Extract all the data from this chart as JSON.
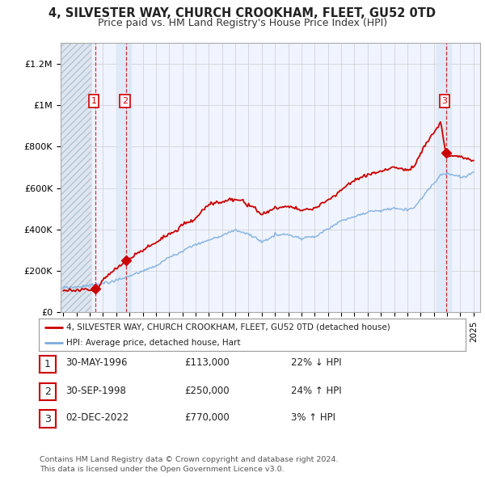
{
  "title": "4, SILVESTER WAY, CHURCH CROOKHAM, FLEET, GU52 0TD",
  "subtitle": "Price paid vs. HM Land Registry's House Price Index (HPI)",
  "ylabel_ticks": [
    "£0",
    "£200K",
    "£400K",
    "£600K",
    "£800K",
    "£1M",
    "£1.2M"
  ],
  "ytick_values": [
    0,
    200000,
    400000,
    600000,
    800000,
    1000000,
    1200000
  ],
  "ylim": [
    0,
    1300000
  ],
  "xlim_start": 1993.8,
  "xlim_end": 2025.5,
  "sale_years": [
    1996.416,
    1998.75,
    2022.917
  ],
  "sale_prices": [
    113000,
    250000,
    770000
  ],
  "sale_labels": [
    "1",
    "2",
    "3"
  ],
  "marker_color": "#cc0000",
  "line_color": "#cc0000",
  "hpi_color": "#7aacdc",
  "legend_label_property": "4, SILVESTER WAY, CHURCH CROOKHAM, FLEET, GU52 0TD (detached house)",
  "legend_label_hpi": "HPI: Average price, detached house, Hart",
  "table_rows": [
    {
      "num": "1",
      "date": "30-MAY-1996",
      "price": "£113,000",
      "hpi": "22% ↓ HPI"
    },
    {
      "num": "2",
      "date": "30-SEP-1998",
      "price": "£250,000",
      "hpi": "24% ↑ HPI"
    },
    {
      "num": "3",
      "date": "02-DEC-2022",
      "price": "£770,000",
      "hpi": "3% ↑ HPI"
    }
  ],
  "footnote": "Contains HM Land Registry data © Crown copyright and database right 2024.\nThis data is licensed under the Open Government Licence v3.0.",
  "background_color": "#ffffff",
  "plot_bg_color": "#f0f4ff",
  "grid_color": "#cccccc",
  "hatch_bg_color": "#dde6f0",
  "hatch_left_end": 1996.0,
  "xticks": [
    1994,
    1995,
    1996,
    1997,
    1998,
    1999,
    2000,
    2001,
    2002,
    2003,
    2004,
    2005,
    2006,
    2007,
    2008,
    2009,
    2010,
    2011,
    2012,
    2013,
    2014,
    2015,
    2016,
    2017,
    2018,
    2019,
    2020,
    2021,
    2022,
    2023,
    2024,
    2025
  ]
}
